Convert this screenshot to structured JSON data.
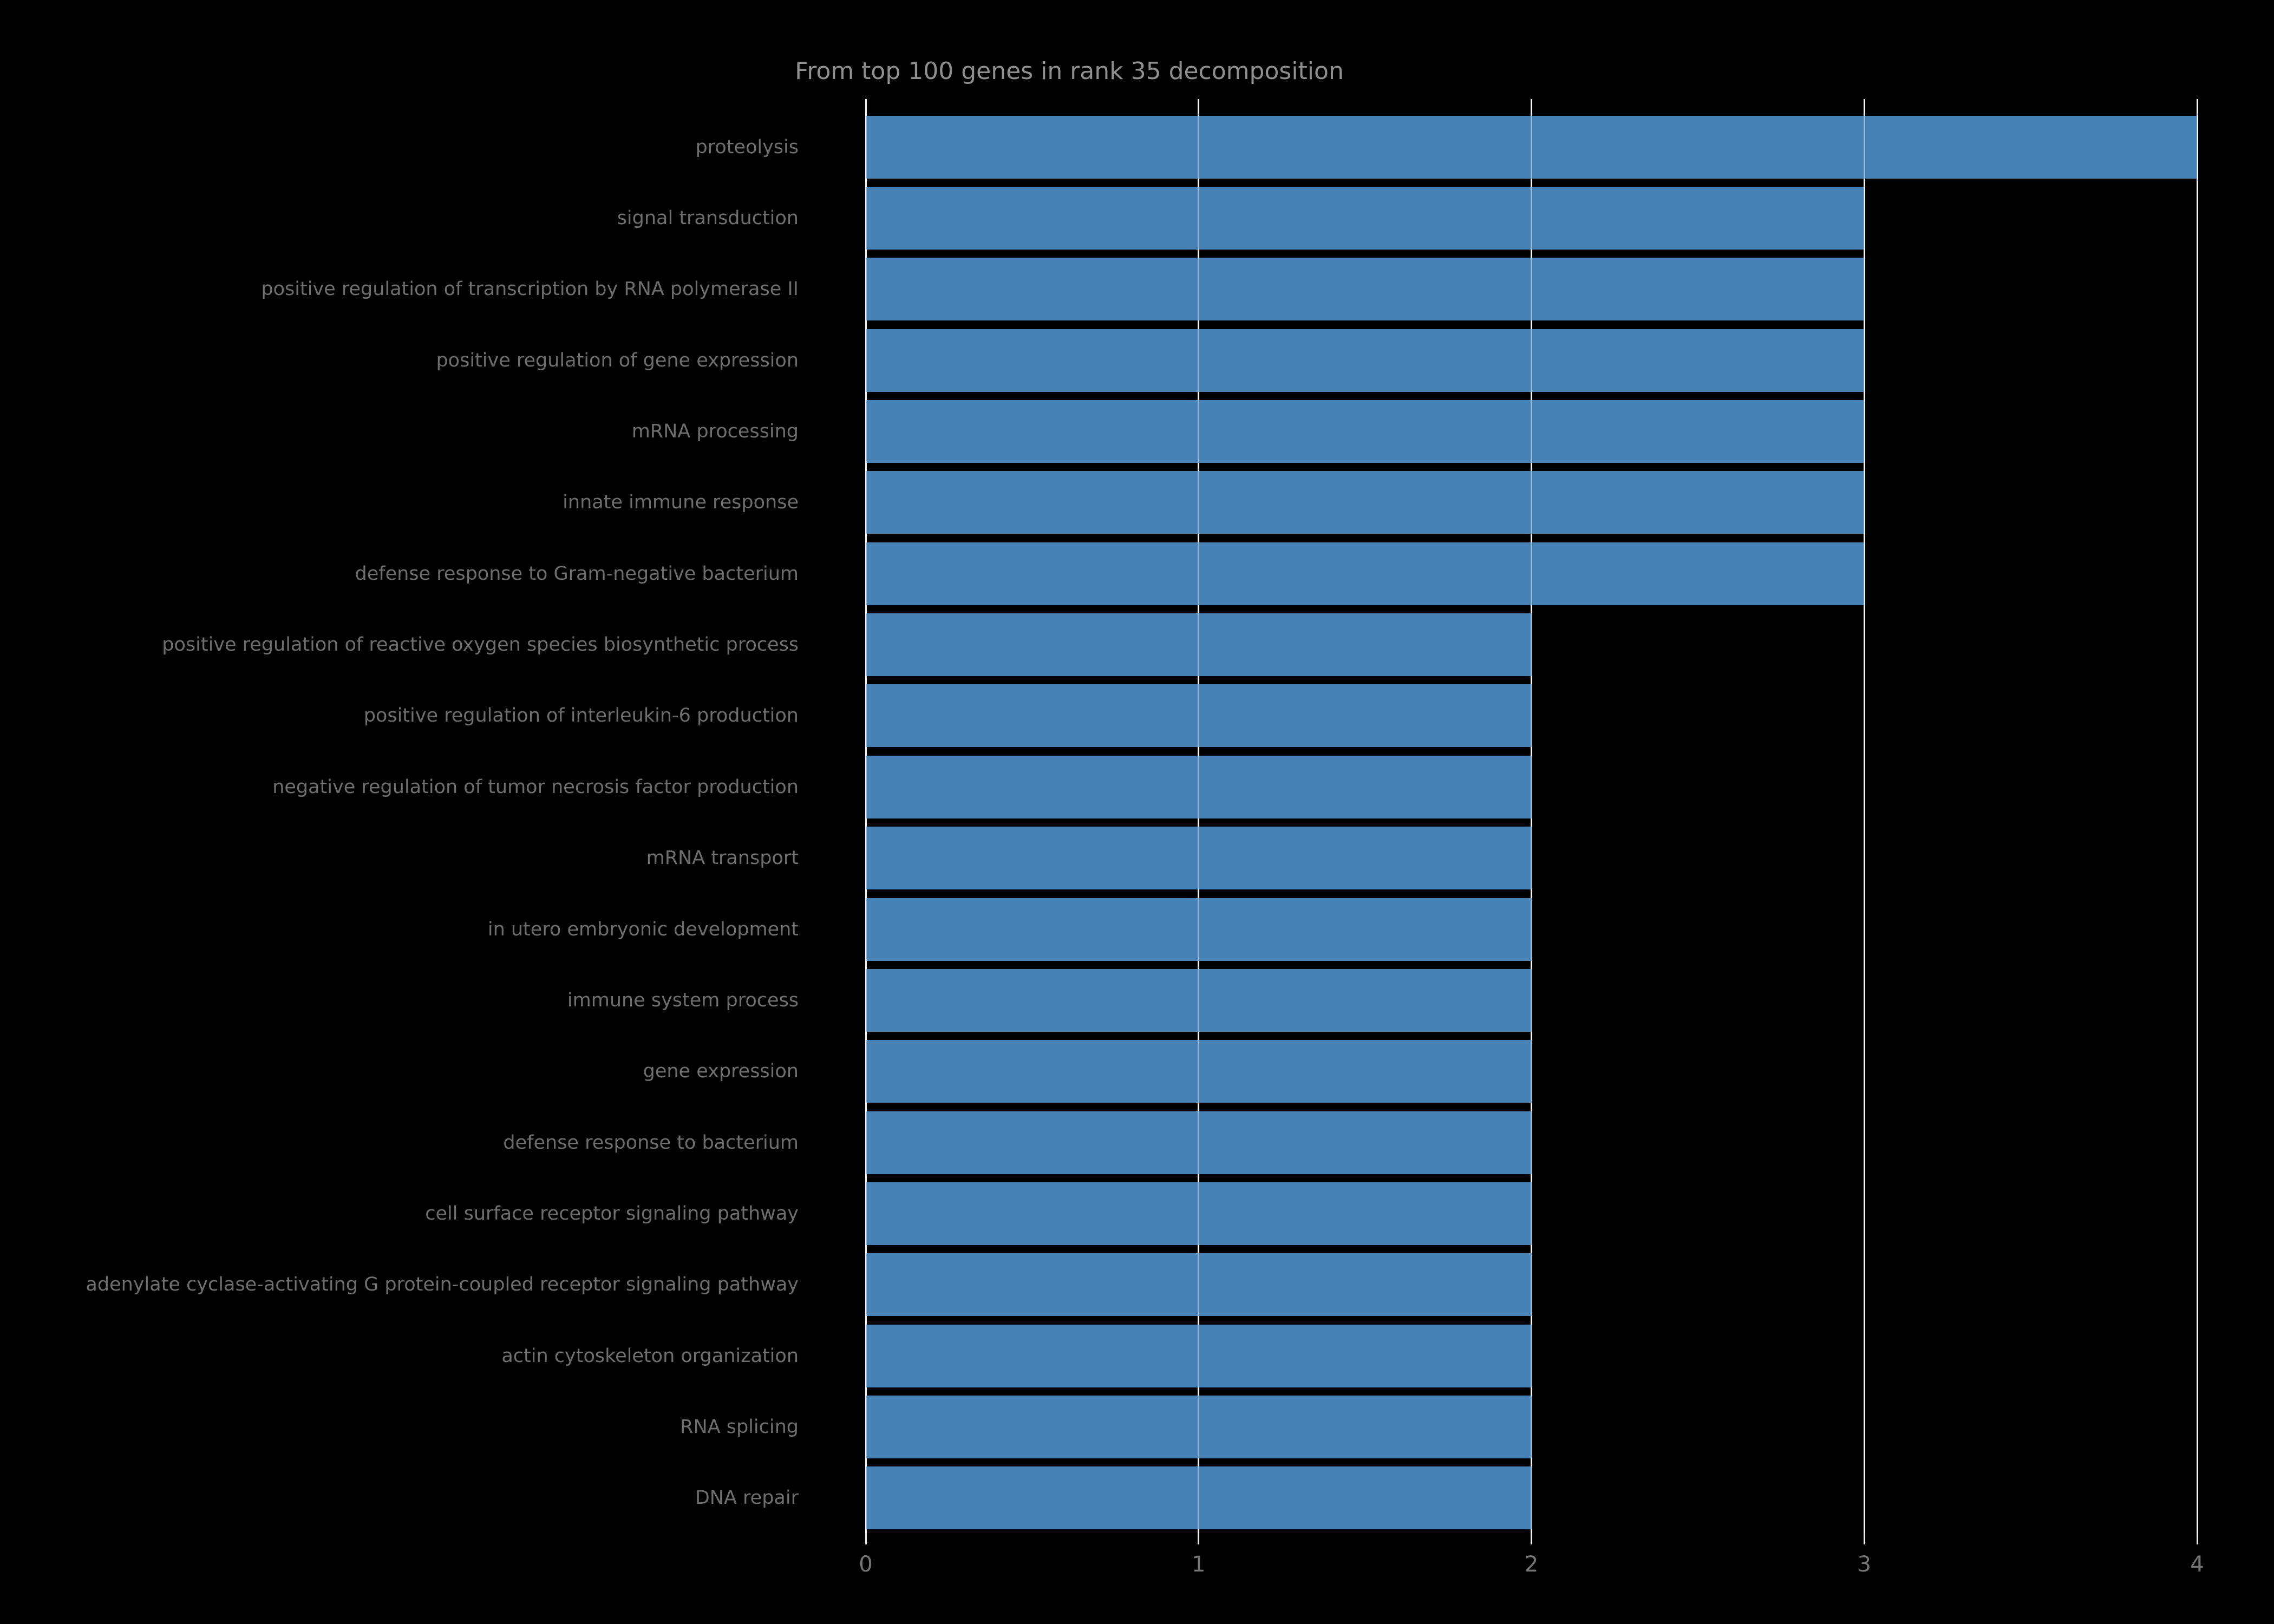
{
  "chart_data": {
    "type": "bar",
    "orientation": "horizontal",
    "title": "From top 100 genes in rank 35 decomposition",
    "categories": [
      "proteolysis",
      "signal transduction",
      "positive regulation of transcription by RNA polymerase II",
      "positive regulation of gene expression",
      "mRNA processing",
      "innate immune response",
      "defense response to Gram-negative bacterium",
      "positive regulation of reactive oxygen species biosynthetic process",
      "positive regulation of interleukin-6 production",
      "negative regulation of tumor necrosis factor production",
      "mRNA transport",
      "in utero embryonic development",
      "immune system process",
      "gene expression",
      "defense response to bacterium",
      "cell surface receptor signaling pathway",
      "adenylate cyclase-activating G protein-coupled receptor signaling pathway",
      "actin cytoskeleton organization",
      "RNA splicing",
      "DNA repair"
    ],
    "values": [
      4,
      3,
      3,
      3,
      3,
      3,
      3,
      2,
      2,
      2,
      2,
      2,
      2,
      2,
      2,
      2,
      2,
      2,
      2,
      2
    ],
    "x_ticks": [
      "0",
      "1",
      "2",
      "3",
      "4"
    ],
    "xlim": [
      0,
      4
    ],
    "xlabel": "",
    "ylabel": "",
    "grid": "vertical gridlines at each x tick, drawn in white over black and faintly visible across bars",
    "legend": "none",
    "colors": {
      "background": "#000000",
      "bar": "#4682b6",
      "gridline": "#ebebeb",
      "title_text": "#8f8f8f",
      "category_text": "#6e6e6e",
      "tick_text": "#757575"
    }
  }
}
